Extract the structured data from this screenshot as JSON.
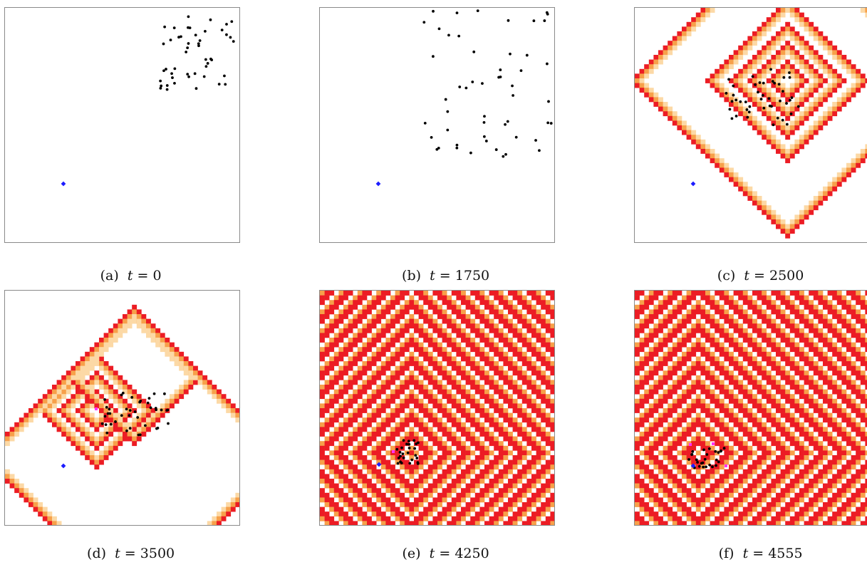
{
  "colors": {
    "wave_red": "#ec1c24",
    "wave_orange": "#f7a04a",
    "wave_light": "#fcd9a6",
    "particle": "#000000",
    "agent_blue": "#1c1cff",
    "marker_magenta": "#ff33ff",
    "frame": "#8a8a8a"
  },
  "panels": [
    {
      "id": "a",
      "label": "(a)",
      "t_var": "t",
      "eq": " = ",
      "t_value": "0",
      "waves": false,
      "wave_mode": "none"
    },
    {
      "id": "b",
      "label": "(b)",
      "t_var": "t",
      "eq": " = ",
      "t_value": "1750",
      "waves": false,
      "wave_mode": "none"
    },
    {
      "id": "c",
      "label": "(c)",
      "t_var": "t",
      "eq": " = ",
      "t_value": "2500",
      "waves": true,
      "wave_mode": "rings"
    },
    {
      "id": "d",
      "label": "(d)",
      "t_var": "t",
      "eq": " = ",
      "t_value": "3500",
      "waves": true,
      "wave_mode": "rings"
    },
    {
      "id": "e",
      "label": "(e)",
      "t_var": "t",
      "eq": " = ",
      "t_value": "4250",
      "waves": true,
      "wave_mode": "full"
    },
    {
      "id": "f",
      "label": "(f)",
      "t_var": "t",
      "eq": " = ",
      "t_value": "4555",
      "waves": true,
      "wave_mode": "full"
    }
  ]
}
